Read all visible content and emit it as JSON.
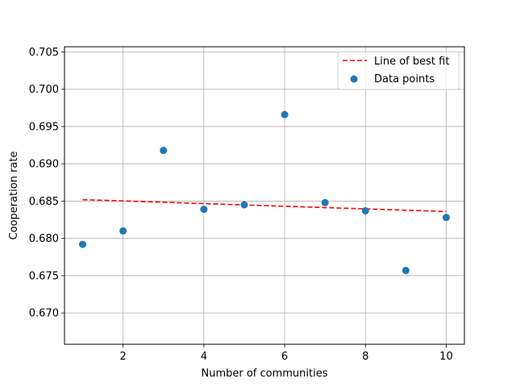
{
  "chart_data": {
    "type": "scatter",
    "title": "",
    "xlabel": "Number of communities",
    "ylabel": "Cooperation rate",
    "xlim": [
      0.55,
      10.45
    ],
    "ylim": [
      0.6658,
      0.7057
    ],
    "grid": true,
    "legend_position": "top-right",
    "x_ticks": [
      2,
      4,
      6,
      8,
      10
    ],
    "x_tick_labels": [
      "2",
      "4",
      "6",
      "8",
      "10"
    ],
    "y_ticks": [
      0.67,
      0.675,
      0.68,
      0.685,
      0.69,
      0.695,
      0.7,
      0.705
    ],
    "y_tick_labels": [
      "0.670",
      "0.675",
      "0.680",
      "0.685",
      "0.690",
      "0.695",
      "0.700",
      "0.705"
    ],
    "series": [
      {
        "name": "Data points",
        "kind": "scatter",
        "color": "#1f77b4",
        "x": [
          1,
          2,
          3,
          4,
          5,
          6,
          7,
          8,
          9,
          10
        ],
        "y": [
          0.6792,
          0.681,
          0.6918,
          0.6839,
          0.6845,
          0.6966,
          0.6848,
          0.6837,
          0.6757,
          0.6828
        ]
      },
      {
        "name": "Line of best fit",
        "kind": "line",
        "style": "dashed",
        "color": "#ff0000",
        "x": [
          1,
          10
        ],
        "y": [
          0.6852,
          0.6836
        ]
      }
    ],
    "legend_order": [
      "Line of best fit",
      "Data points"
    ]
  }
}
